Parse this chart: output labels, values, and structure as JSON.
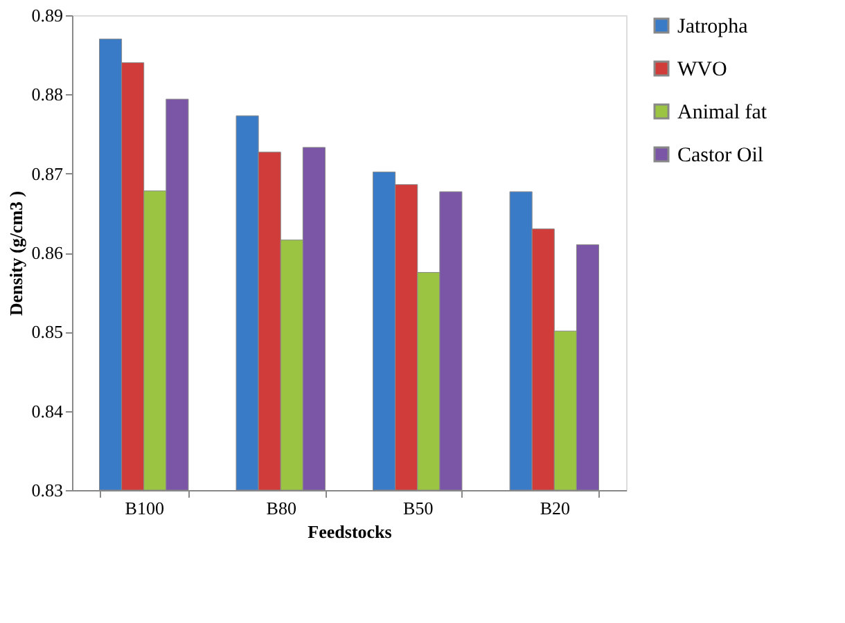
{
  "chart_data": {
    "type": "bar",
    "xlabel": "Feedstocks",
    "ylabel": "Density (g/cm3 )",
    "categories": [
      "B100",
      "B80",
      "B50",
      "B20"
    ],
    "series": [
      {
        "name": "Jatropha",
        "color": "#3a7bc8",
        "values": [
          0.887,
          0.8773,
          0.8702,
          0.8677
        ]
      },
      {
        "name": "WVO",
        "color": "#d03c3a",
        "values": [
          0.884,
          0.8727,
          0.8686,
          0.863
        ]
      },
      {
        "name": "Animal fat",
        "color": "#9bc443",
        "values": [
          0.8678,
          0.8616,
          0.8575,
          0.8501
        ]
      },
      {
        "name": "Castor Oil",
        "color": "#7b56a6",
        "values": [
          0.8794,
          0.8733,
          0.8677,
          0.861
        ]
      }
    ],
    "ylim": [
      0.83,
      0.89
    ],
    "yticks": [
      0.83,
      0.84,
      0.85,
      0.86,
      0.87,
      0.88,
      0.89
    ],
    "grid": false,
    "legend": "right"
  }
}
